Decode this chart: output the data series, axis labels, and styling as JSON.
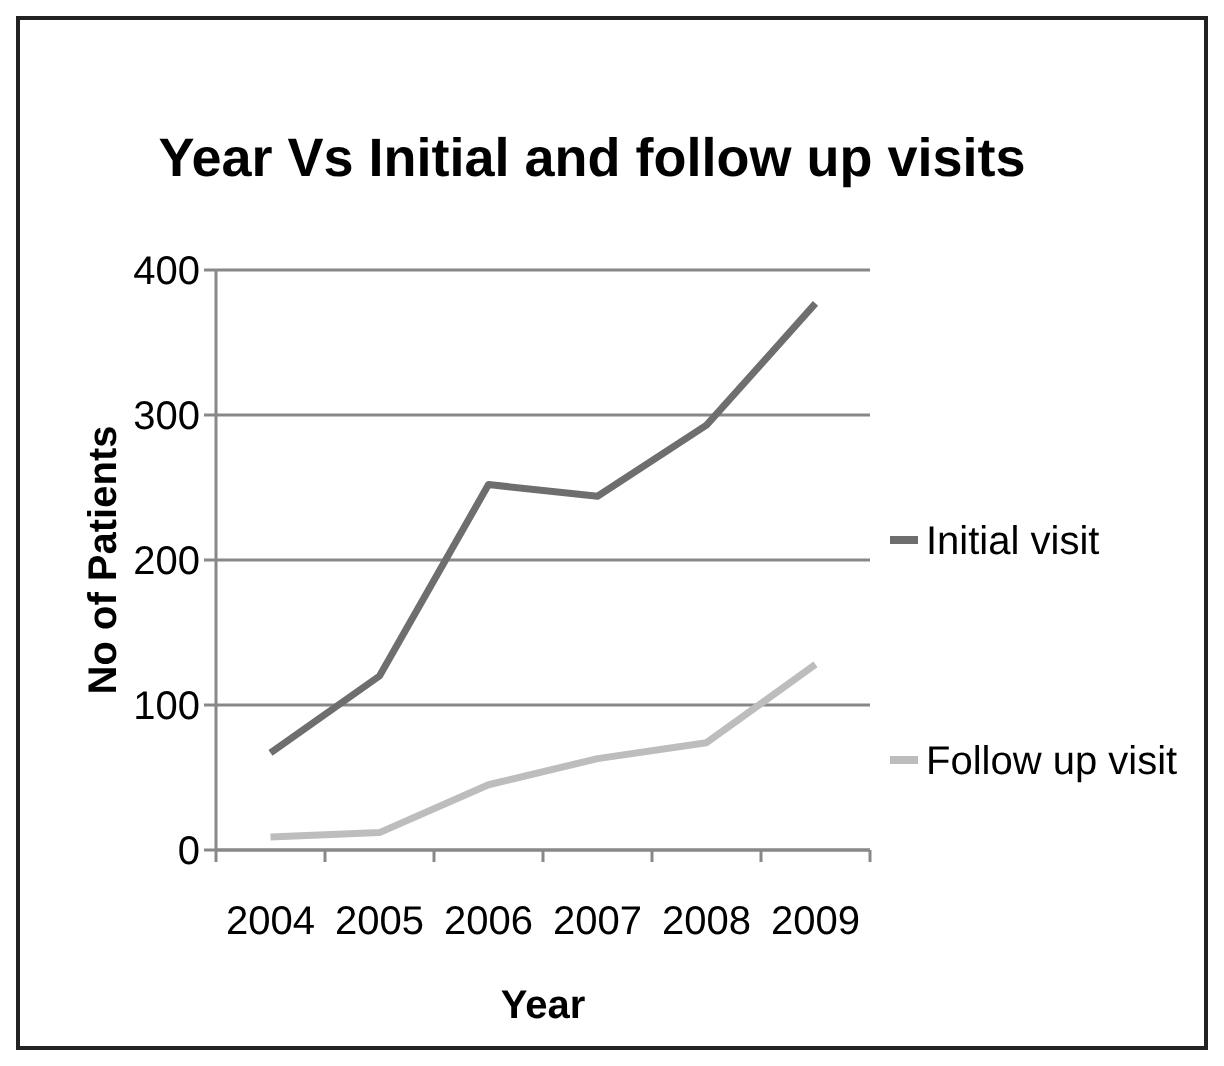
{
  "chart_data": {
    "type": "line",
    "title": "Year Vs Initial and follow up visits",
    "xlabel": "Year",
    "ylabel": "No of Patients",
    "categories": [
      "2004",
      "2005",
      "2006",
      "2007",
      "2008",
      "2009"
    ],
    "series": [
      {
        "name": "Initial visit",
        "color": "#6e6e6e",
        "values": [
          67,
          120,
          252,
          244,
          293,
          377
        ]
      },
      {
        "name": "Follow up visit",
        "color": "#bdbdbd",
        "values": [
          9,
          12,
          45,
          63,
          74,
          128
        ]
      }
    ],
    "ylim": [
      0,
      400
    ],
    "yticks": [
      0,
      100,
      200,
      300,
      400
    ],
    "grid": "y",
    "legend": "right",
    "marker": "none",
    "line_style": "solid"
  }
}
